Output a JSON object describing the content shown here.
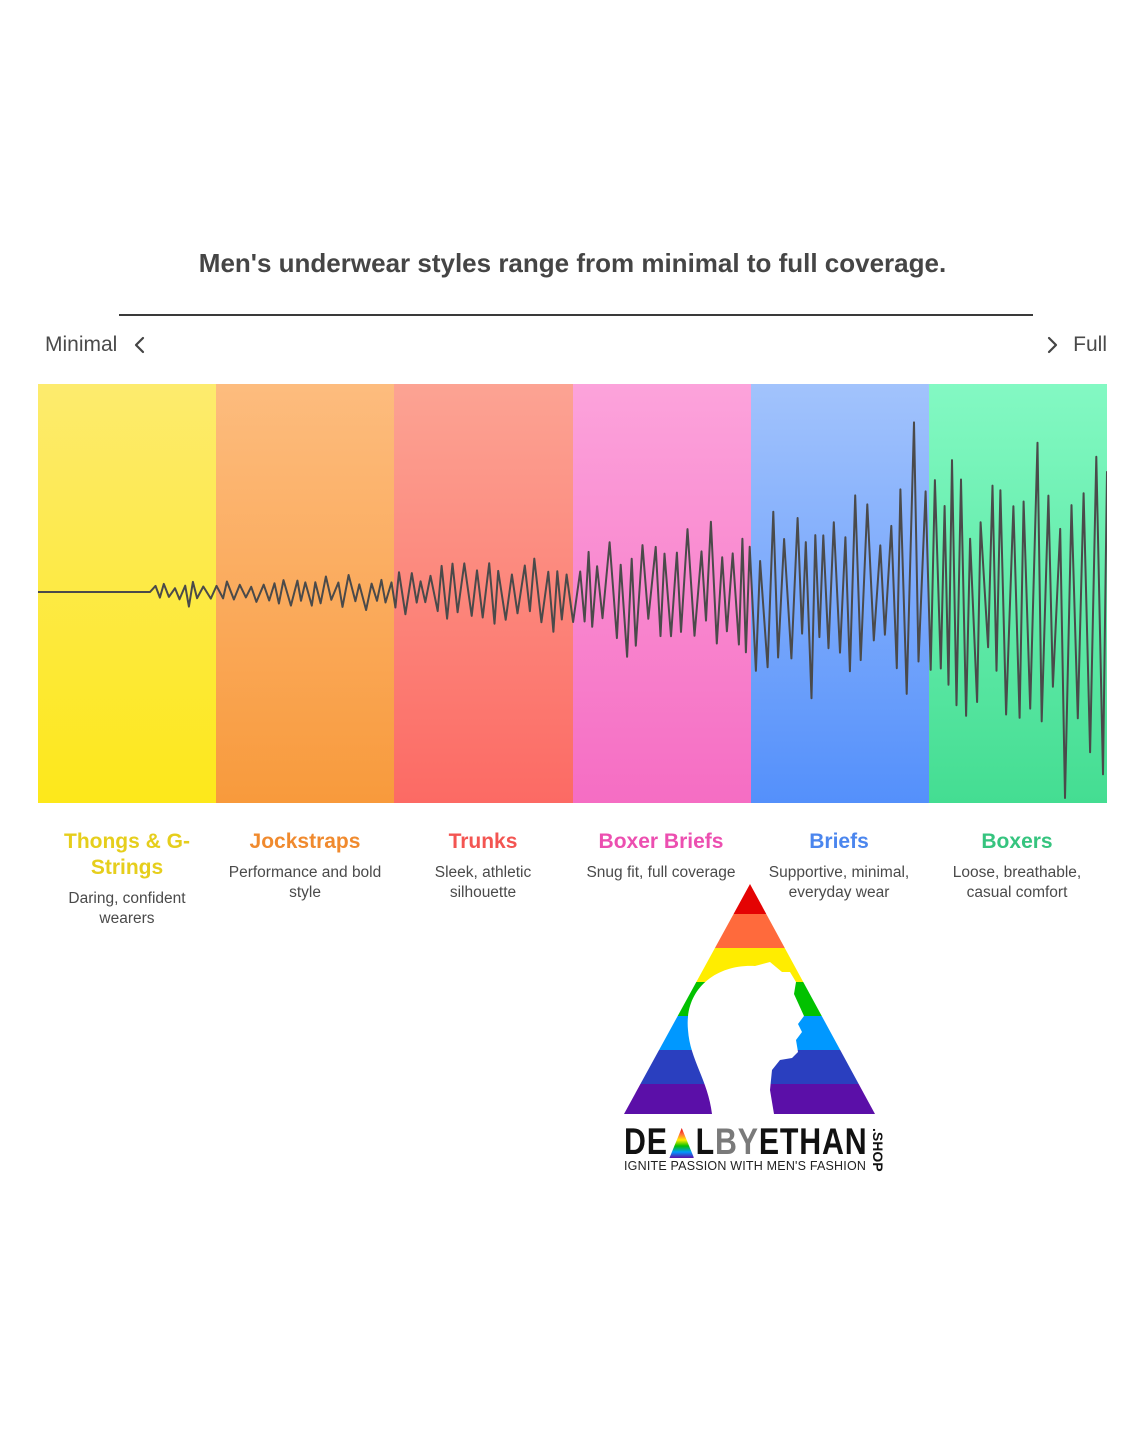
{
  "title": "Men's underwear styles range from minimal to full coverage.",
  "scale": {
    "left_label": "Minimal",
    "right_label": "Full"
  },
  "categories": [
    {
      "name": "Thongs & G-Strings",
      "description": "Daring, confident wearers",
      "color": "#e6ce1c"
    },
    {
      "name": "Jockstraps",
      "description": "Performance and bold style",
      "color": "#f08a2e"
    },
    {
      "name": "Trunks",
      "description": "Sleek, athletic silhouette",
      "color": "#f35552"
    },
    {
      "name": "Boxer Briefs",
      "description": "Snug fit, full coverage",
      "color": "#ec4fb0"
    },
    {
      "name": "Briefs",
      "description": "Supportive, minimal, everyday wear",
      "color": "#4b86ee"
    },
    {
      "name": "Boxers",
      "description": "Loose, breathable, casual comfort",
      "color": "#36c47f"
    }
  ],
  "waveform": {
    "line_color": "#4a4a4a"
  },
  "logo": {
    "brand_part1": "DE",
    "brand_part2": "L",
    "brand_part3": "BY",
    "brand_part4": "ETHAN",
    "domain_suffix": ".SHOP",
    "tagline": "IGNITE PASSION WITH MEN'S FASHION",
    "stripe_colors": [
      "#e40303",
      "#ff6a3c",
      "#ffed00",
      "#02c100",
      "#0098ff",
      "#2a3fbf",
      "#5b0fa8"
    ]
  }
}
